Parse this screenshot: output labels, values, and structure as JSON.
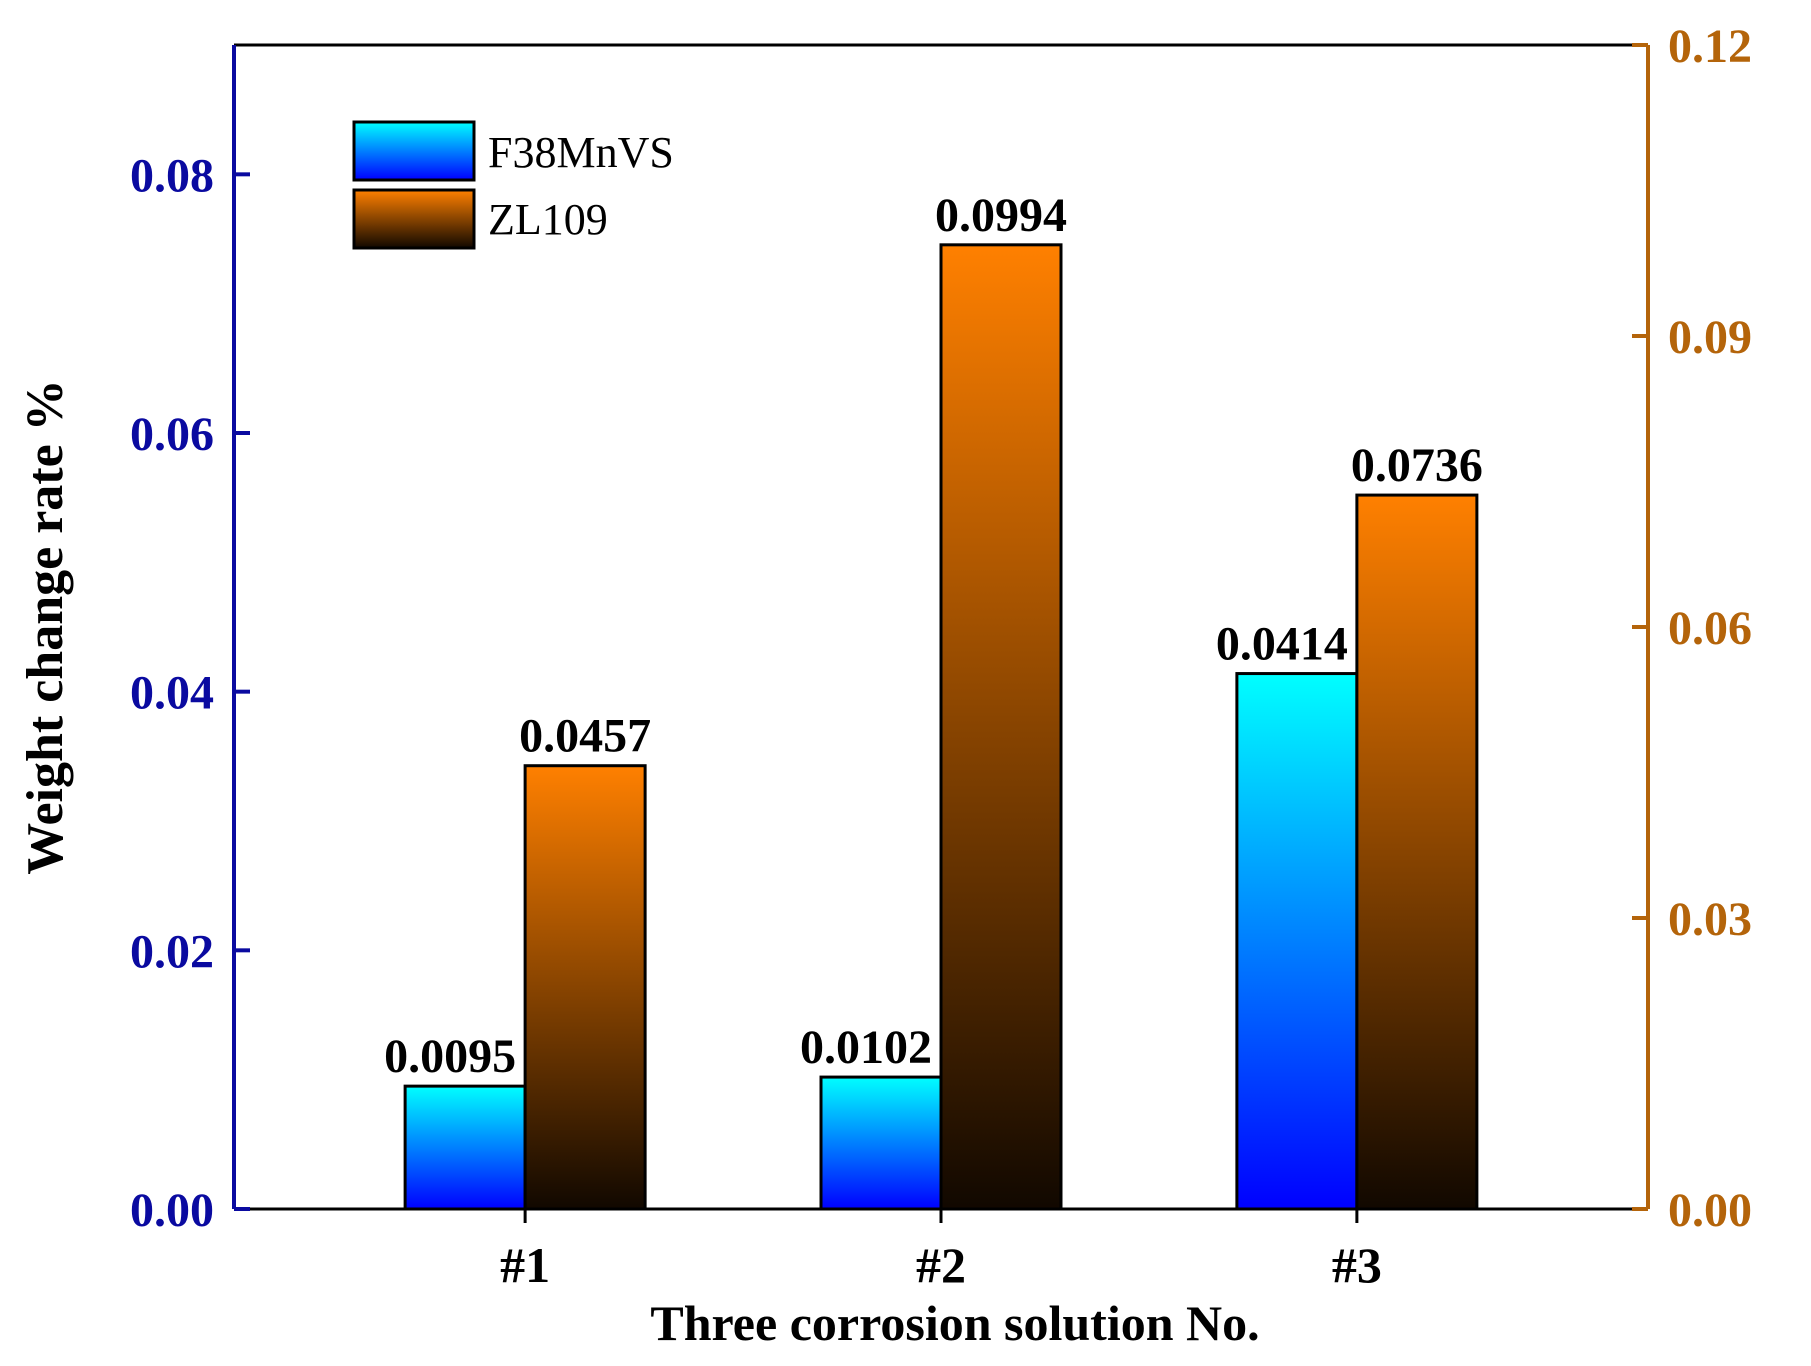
{
  "colors": {
    "left_axis": "#0a0aa0",
    "right_axis": "#b4640a",
    "f38_top": "#00ffff",
    "f38_bottom": "#0000ff",
    "zl_top": "#ff8000",
    "zl_bottom": "#110800",
    "text": "#000000"
  },
  "chart_data": {
    "type": "bar",
    "categories": [
      "#1",
      "#2",
      "#3"
    ],
    "xlabel": "Three corrosion solution No.",
    "ylabel": "Weight change rate %",
    "ylim": [
      0,
      0.09
    ],
    "y2lim": [
      0,
      0.12
    ],
    "yticks": [
      "0.00",
      "0.02",
      "0.04",
      "0.06",
      "0.08"
    ],
    "y2ticks": [
      "0.00",
      "0.03",
      "0.06",
      "0.09",
      "0.12"
    ],
    "legend_position": "top-left",
    "series": [
      {
        "name": "F38MnVS",
        "axis": "left",
        "values": [
          0.0095,
          0.0102,
          0.0414
        ],
        "labels": [
          "0.0095",
          "0.0102",
          "0.0414"
        ]
      },
      {
        "name": "ZL109",
        "axis": "right",
        "values": [
          0.0457,
          0.0994,
          0.0736
        ],
        "labels": [
          "0.0457",
          "0.0994",
          "0.0736"
        ]
      }
    ]
  }
}
